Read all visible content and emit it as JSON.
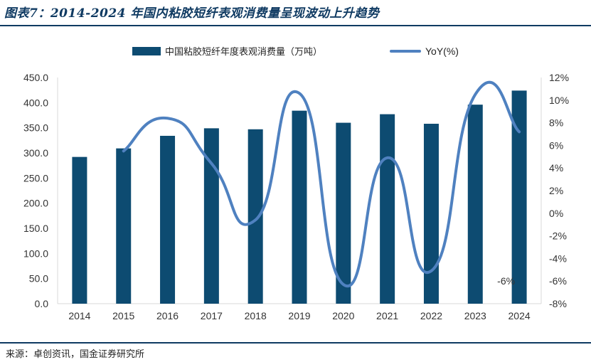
{
  "header": {
    "title": "图表7：2014-2024 年国内粘胶短纤表观消费量呈现波动上升趋势"
  },
  "footer": {
    "source": "来源：卓创资讯，国金证券研究所"
  },
  "colors": {
    "bar": "#0d4b71",
    "line": "#4f81c0",
    "rule": "#0f3a62",
    "axis": "#d9d9d9",
    "text": "#333333"
  },
  "chart_data": {
    "type": "bar",
    "categories": [
      "2014",
      "2015",
      "2016",
      "2017",
      "2018",
      "2019",
      "2020",
      "2021",
      "2022",
      "2023",
      "2024"
    ],
    "series": [
      {
        "name": "中国粘胶短纤年度表观消费量（万吨）",
        "type": "bar",
        "axis": "left",
        "values": [
          292,
          309,
          334,
          349,
          347,
          384,
          360,
          377,
          358,
          396,
          424
        ]
      },
      {
        "name": "YoY(%)",
        "type": "line",
        "axis": "right",
        "smooth": true,
        "values": [
          null,
          5.5,
          8.4,
          4.4,
          -0.6,
          10.6,
          -6.3,
          4.9,
          -5.1,
          10.5,
          7.2
        ]
      }
    ],
    "ylim": [
      0,
      450
    ],
    "y_ticks": [
      "0.0",
      "50.0",
      "100.0",
      "150.0",
      "200.0",
      "250.0",
      "300.0",
      "350.0",
      "400.0",
      "450.0"
    ],
    "y2lim": [
      -8,
      12
    ],
    "y2_ticks": [
      "-8%",
      "-6%",
      "-4%",
      "-2%",
      "0%",
      "2%",
      "4%",
      "6%",
      "8%",
      "10%",
      "12%"
    ],
    "annotations": [
      {
        "text": "-6%"
      }
    ],
    "legend": "top",
    "grid": false
  }
}
